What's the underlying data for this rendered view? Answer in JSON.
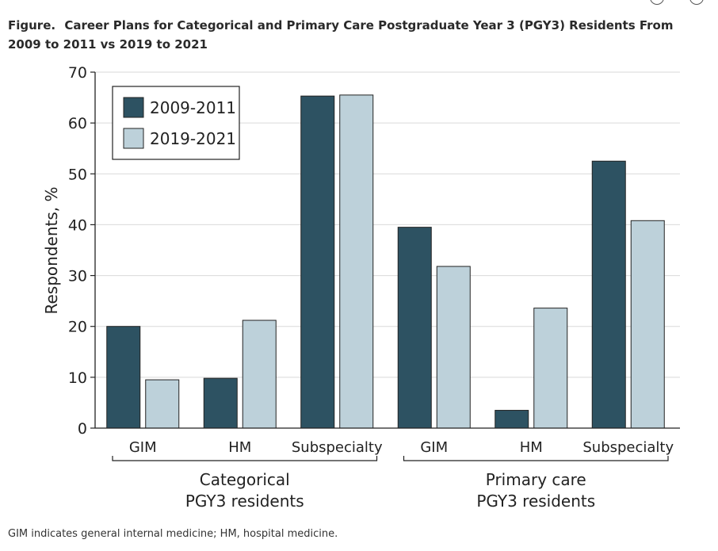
{
  "figure": {
    "lead": "Figure.",
    "title": "Career Plans for Categorical and Primary Care Postgraduate Year 3 (PGY3) Residents From 2009 to 2011 vs 2019 to 2021",
    "footnote": "GIM indicates general internal medicine; HM, hospital medicine."
  },
  "colors": {
    "series_2009": "#2d5262",
    "series_2019": "#bdd1da",
    "grid": "#d9d9d9",
    "border": "#222222"
  },
  "chart_data": {
    "type": "bar",
    "title": "Career Plans for Categorical and Primary Care Postgraduate Year 3 (PGY3) Residents From 2009 to 2011 vs 2019 to 2021",
    "ylabel": "Respondents, %",
    "xlabel": "",
    "ylim": [
      0,
      70
    ],
    "yticks": [
      "0",
      "10",
      "20",
      "30",
      "40",
      "50",
      "60",
      "70"
    ],
    "grid": true,
    "legend_position": "top-left",
    "categories": [
      "GIM",
      "HM",
      "Subspecialty",
      "GIM",
      "HM",
      "Subspecialty"
    ],
    "groups": [
      {
        "label_line1": "Categorical",
        "label_line2": "PGY3 residents"
      },
      {
        "label_line1": "Primary care",
        "label_line2": "PGY3 residents"
      }
    ],
    "series": [
      {
        "name": "2009-2011",
        "values": [
          20,
          9.8,
          65.3,
          39.5,
          3.5,
          52.5
        ]
      },
      {
        "name": "2019-2021",
        "values": [
          9.5,
          21.2,
          65.5,
          31.8,
          23.6,
          40.8
        ]
      }
    ]
  }
}
